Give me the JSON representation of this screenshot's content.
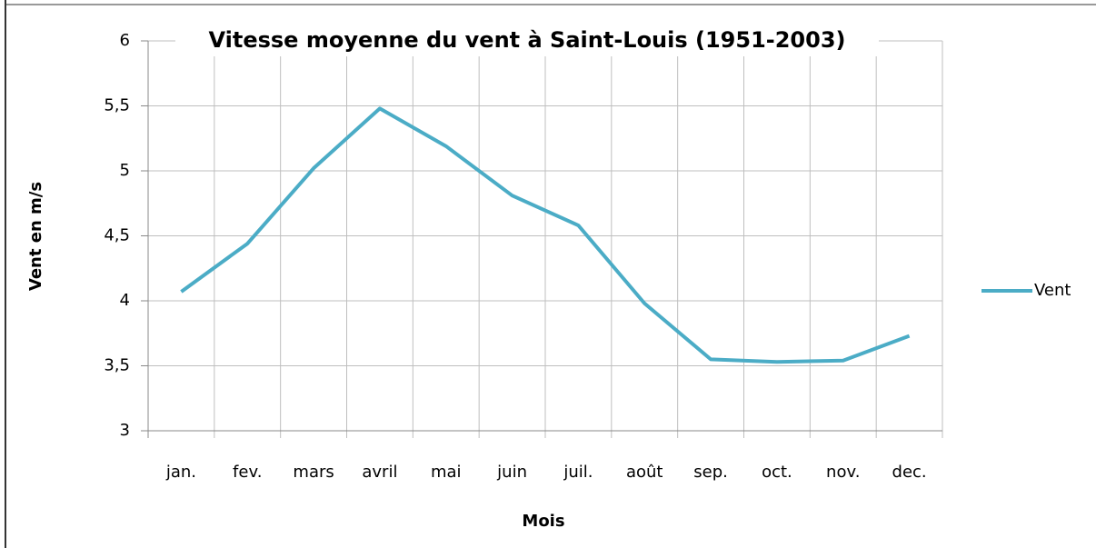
{
  "chart_data": {
    "type": "line",
    "title": "Vitesse moyenne du vent à Saint-Louis (1951-2003)",
    "x_label": "Mois",
    "y_label": "Vent en m/s",
    "categories": [
      "jan.",
      "fev.",
      "mars",
      "avril",
      "mai",
      "juin",
      "juil.",
      "août",
      "sep.",
      "oct.",
      "nov.",
      "dec."
    ],
    "series": [
      {
        "name": "Vent",
        "color": "#4bacc6",
        "values": [
          4.07,
          4.44,
          5.02,
          5.48,
          5.19,
          4.81,
          4.58,
          3.98,
          3.55,
          3.53,
          3.54,
          3.73
        ]
      }
    ],
    "ylim": [
      3,
      6
    ],
    "yticks": [
      3,
      {
        "value": 3.5,
        "label": "3,5"
      },
      4,
      {
        "value": 4.5,
        "label": "4,5"
      },
      5,
      {
        "value": 5.5,
        "label": "5,5"
      },
      6
    ],
    "grid": true,
    "legend": "right"
  }
}
